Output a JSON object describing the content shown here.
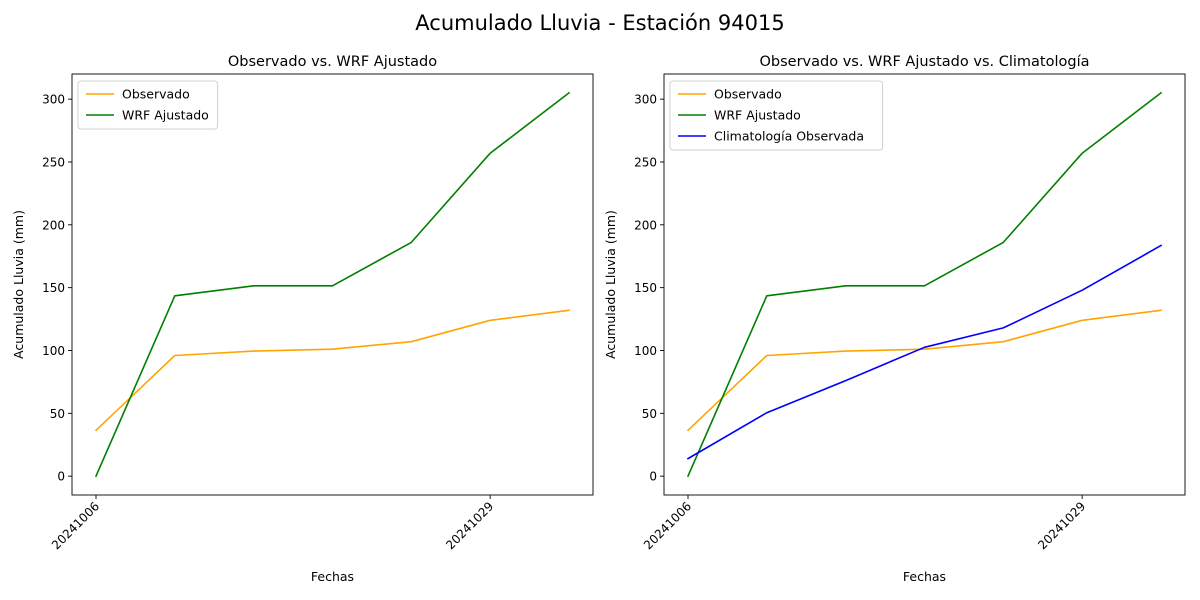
{
  "figure": {
    "suptitle": "Acumulado Lluvia - Estación 94015"
  },
  "chart_data": [
    {
      "type": "line",
      "title": "Observado vs. WRF Ajustado",
      "xlabel": "Fechas",
      "ylabel": "Acumulado Lluvia (mm)",
      "ylim": [
        -15,
        320
      ],
      "yticks": [
        0,
        50,
        100,
        150,
        200,
        250,
        300
      ],
      "x_index": [
        0,
        1,
        2,
        3,
        4,
        5,
        6
      ],
      "xticks": [
        {
          "index": 0,
          "label": "20241006"
        },
        {
          "index": 5,
          "label": "20241029"
        }
      ],
      "grid": false,
      "legend": "top-left",
      "series": [
        {
          "name": "Observado",
          "color": "#ffa500",
          "values": [
            36.5,
            96,
            99.5,
            101,
            107,
            124,
            132
          ]
        },
        {
          "name": "WRF Ajustado",
          "color": "#008000",
          "values": [
            0,
            143.5,
            151.5,
            151.5,
            186,
            257,
            305
          ]
        }
      ]
    },
    {
      "type": "line",
      "title": "Observado vs. WRF Ajustado vs. Climatología",
      "xlabel": "Fechas",
      "ylabel": "Acumulado Lluvia (mm)",
      "ylim": [
        -15,
        320
      ],
      "yticks": [
        0,
        50,
        100,
        150,
        200,
        250,
        300
      ],
      "x_index": [
        0,
        1,
        2,
        3,
        4,
        5,
        6
      ],
      "xticks": [
        {
          "index": 0,
          "label": "20241006"
        },
        {
          "index": 5,
          "label": "20241029"
        }
      ],
      "grid": false,
      "legend": "top-left",
      "series": [
        {
          "name": "Observado",
          "color": "#ffa500",
          "values": [
            36.5,
            96,
            99.5,
            101,
            107,
            124,
            132
          ]
        },
        {
          "name": "WRF Ajustado",
          "color": "#008000",
          "values": [
            0,
            143.5,
            151.5,
            151.5,
            186,
            257,
            305
          ]
        },
        {
          "name": "Climatología Observada",
          "color": "#0000ff",
          "values": [
            14,
            50.5,
            76,
            102.5,
            118,
            148,
            183.5
          ]
        }
      ]
    }
  ]
}
